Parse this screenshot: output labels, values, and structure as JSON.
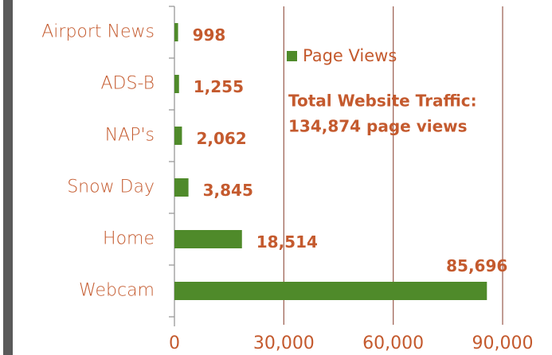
{
  "chart_data": {
    "type": "bar",
    "orientation": "horizontal",
    "categories": [
      "Airport News",
      "ADS-B",
      "NAP's",
      "Snow Day",
      "Home",
      "Webcam"
    ],
    "series": [
      {
        "name": "Page Views",
        "color": "#4f8a2a",
        "values": [
          998,
          1255,
          2062,
          3845,
          18514,
          85696
        ],
        "value_labels": [
          "998",
          "1,255",
          "2,062",
          "3,845",
          "18,514",
          "85,696"
        ]
      }
    ],
    "xlim": [
      0,
      90000
    ],
    "xticks": [
      0,
      {
        "value": 30000,
        "label": "30,000"
      },
      {
        "value": 60000,
        "label": "60,000"
      },
      {
        "value": 90000,
        "label": "90,000"
      }
    ],
    "grid": true,
    "annotations": [
      "Total Website Traffic:",
      "134,874 page views"
    ]
  }
}
